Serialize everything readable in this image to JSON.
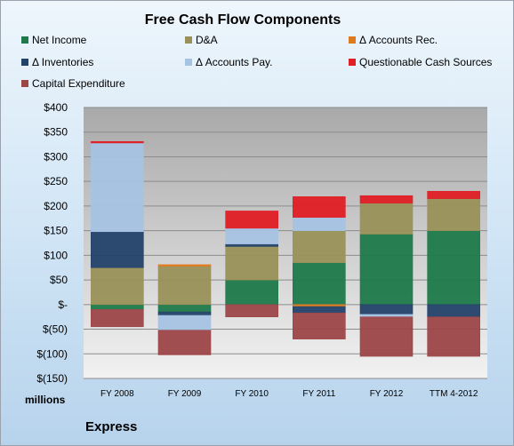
{
  "chart_data": {
    "type": "bar",
    "stacked": true,
    "title": "Free Cash Flow Components",
    "units_label": "millions",
    "company": "Express",
    "categories": [
      "FY 2008",
      "FY 2009",
      "FY 2010",
      "FY 2011",
      "FY 2012",
      "TTM 4-2012"
    ],
    "ylim": [
      -150,
      400
    ],
    "yticks": [
      400,
      350,
      300,
      250,
      200,
      150,
      100,
      50,
      0,
      -50,
      -100,
      -150
    ],
    "ytick_labels": [
      "$400",
      "$350",
      "$300",
      "$250",
      "$200",
      "$150",
      "$100",
      "$50",
      "$-",
      "$(50)",
      "$(100)",
      "$(150)"
    ],
    "grid": true,
    "legend_position": "top",
    "series": [
      {
        "name": "Net Income",
        "color": "#1e7a4a",
        "values": [
          -10,
          -15,
          50,
          85,
          143,
          150
        ]
      },
      {
        "name": "D&A",
        "color": "#9a9158",
        "values": [
          75,
          78,
          68,
          65,
          63,
          65
        ]
      },
      {
        "name": "Δ Accounts Rec.",
        "color": "#e07a1f",
        "values": [
          0,
          3,
          0,
          -4,
          0,
          0
        ]
      },
      {
        "name": "Δ Inventories",
        "color": "#23426a",
        "values": [
          73,
          -7,
          5,
          -13,
          -20,
          -25
        ]
      },
      {
        "name": "Δ Accounts Pay.",
        "color": "#a5c3e3",
        "values": [
          180,
          -30,
          32,
          27,
          -5,
          0
        ]
      },
      {
        "name": "Questionable Cash Sources",
        "color": "#e01e25",
        "values": [
          3,
          0,
          35,
          42,
          15,
          15
        ]
      },
      {
        "name": "Capital Expenditure",
        "color": "#9c4648",
        "values": [
          -35,
          -50,
          -25,
          -53,
          -80,
          -80
        ]
      }
    ]
  }
}
